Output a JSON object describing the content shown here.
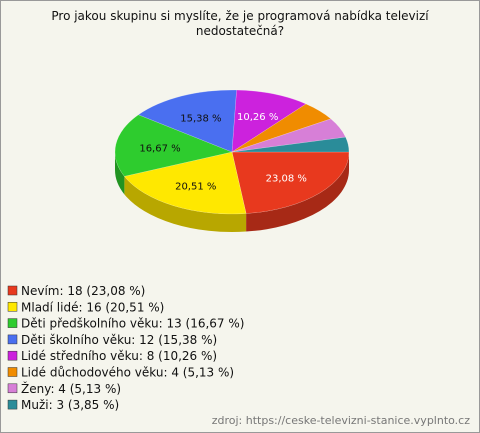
{
  "chart_data": {
    "type": "pie3d",
    "title": "Pro jakou skupinu si myslíte, že je programová nabídka televizí nedostatečná?",
    "legend_labels": [
      "Nevím: 18 (23,08 %)",
      "Mladí lidé: 16 (20,51 %)",
      "Děti předškolního věku: 13 (16,67 %)",
      "Děti školního věku: 12 (15,38 %)",
      "Lidé středního věku: 8 (10,26 %)",
      "Lidé důchodového věku: 4 (5,13 %)",
      "Ženy: 4 (5,13 %)",
      "Muži: 3 (3,85 %)"
    ],
    "values": [
      23.08,
      20.51,
      16.67,
      15.38,
      10.26,
      5.13,
      5.13,
      3.85
    ],
    "value_labels": [
      "23,08 %",
      "20,51 %",
      "16,67 %",
      "15,38 %",
      "10,26 %",
      null,
      null,
      null
    ],
    "colors": [
      "#e8391e",
      "#ffe800",
      "#2ecc2e",
      "#4a6ff0",
      "#cc22dd",
      "#f08c00",
      "#d77fd7",
      "#2a8c99"
    ],
    "legend": "bottom-left",
    "source": "zdroj: https://ceske-televizni-stanice.vyplnto.cz"
  }
}
